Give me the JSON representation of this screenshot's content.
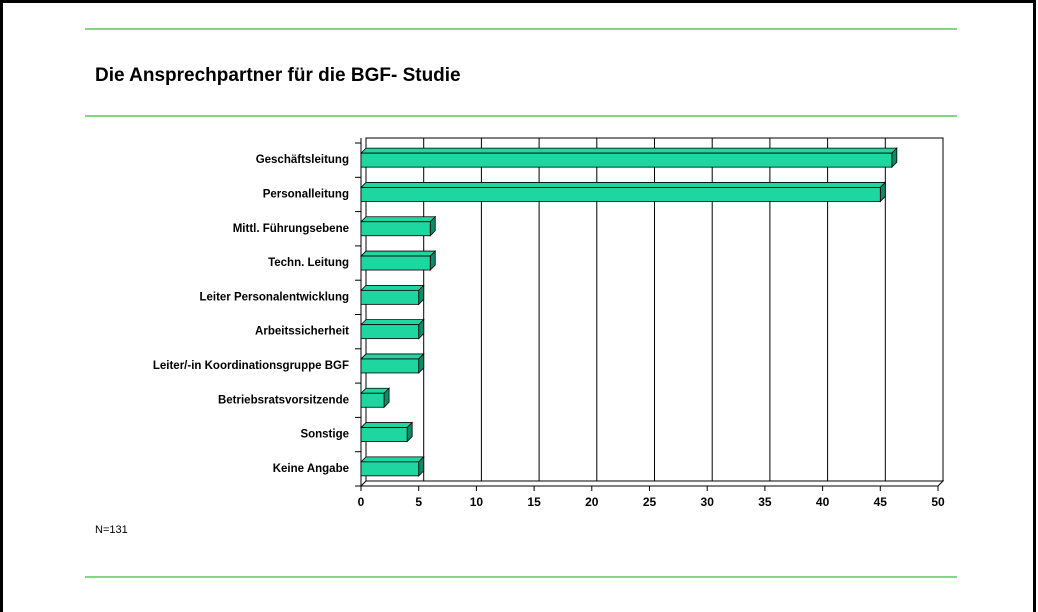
{
  "chart_data": {
    "type": "bar",
    "orientation": "horizontal",
    "title": "Die Ansprechpartner für die BGF- Studie",
    "note": "N=131",
    "categories": [
      "Geschäftsleitung",
      "Personalleitung",
      "Mittl. Führungsebene",
      "Techn. Leitung",
      "Leiter Personalentwicklung",
      "Arbeitssicherheit",
      "Leiter/-in Koordinationsgruppe BGF",
      "Betriebsratsvorsitzende",
      "Sonstige",
      "Keine Angabe"
    ],
    "values": [
      46,
      45,
      6,
      6,
      5,
      5,
      5,
      2,
      4,
      5
    ],
    "color": "#1ed6a0",
    "xlim": [
      0,
      50
    ],
    "xticks": [
      0,
      5,
      10,
      15,
      20,
      25,
      30,
      35,
      40,
      45,
      50
    ],
    "grid": true
  }
}
